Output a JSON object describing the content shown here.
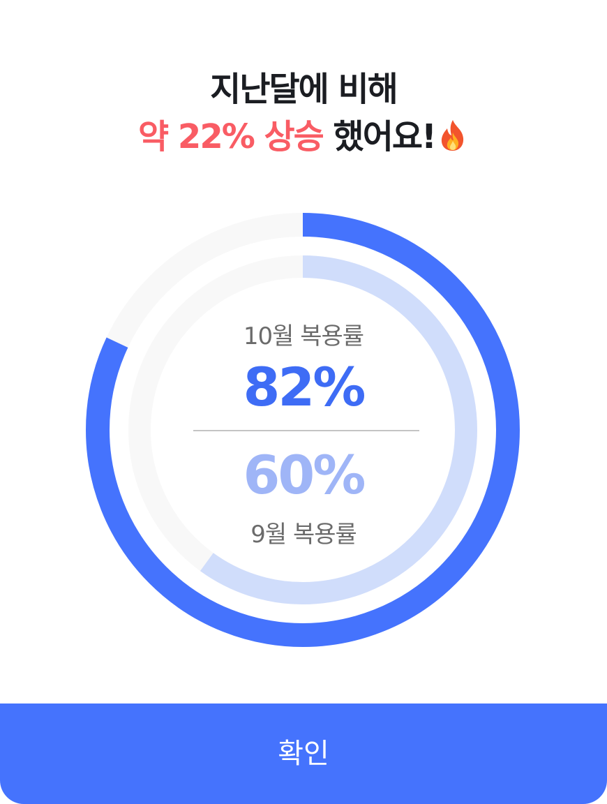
{
  "header": {
    "title_line1": "지난달에 비해",
    "title_highlight": "약 22% 상승",
    "title_rest": " 했어요!",
    "emoji_icon": "fire-icon"
  },
  "stats": {
    "current": {
      "label": "10월 복용률",
      "value_text": "82%",
      "percent": 82
    },
    "previous": {
      "value_text": "60%",
      "label": "9월 복용률",
      "percent": 60
    }
  },
  "colors": {
    "accent": "#4573fd",
    "highlight": "#f95c64",
    "current_value": "#3e6cf5",
    "previous_value": "#9fb5f7",
    "previous_ring": "#d0ddfb",
    "track": "#f8f8f8"
  },
  "actions": {
    "confirm_label": "확인"
  }
}
